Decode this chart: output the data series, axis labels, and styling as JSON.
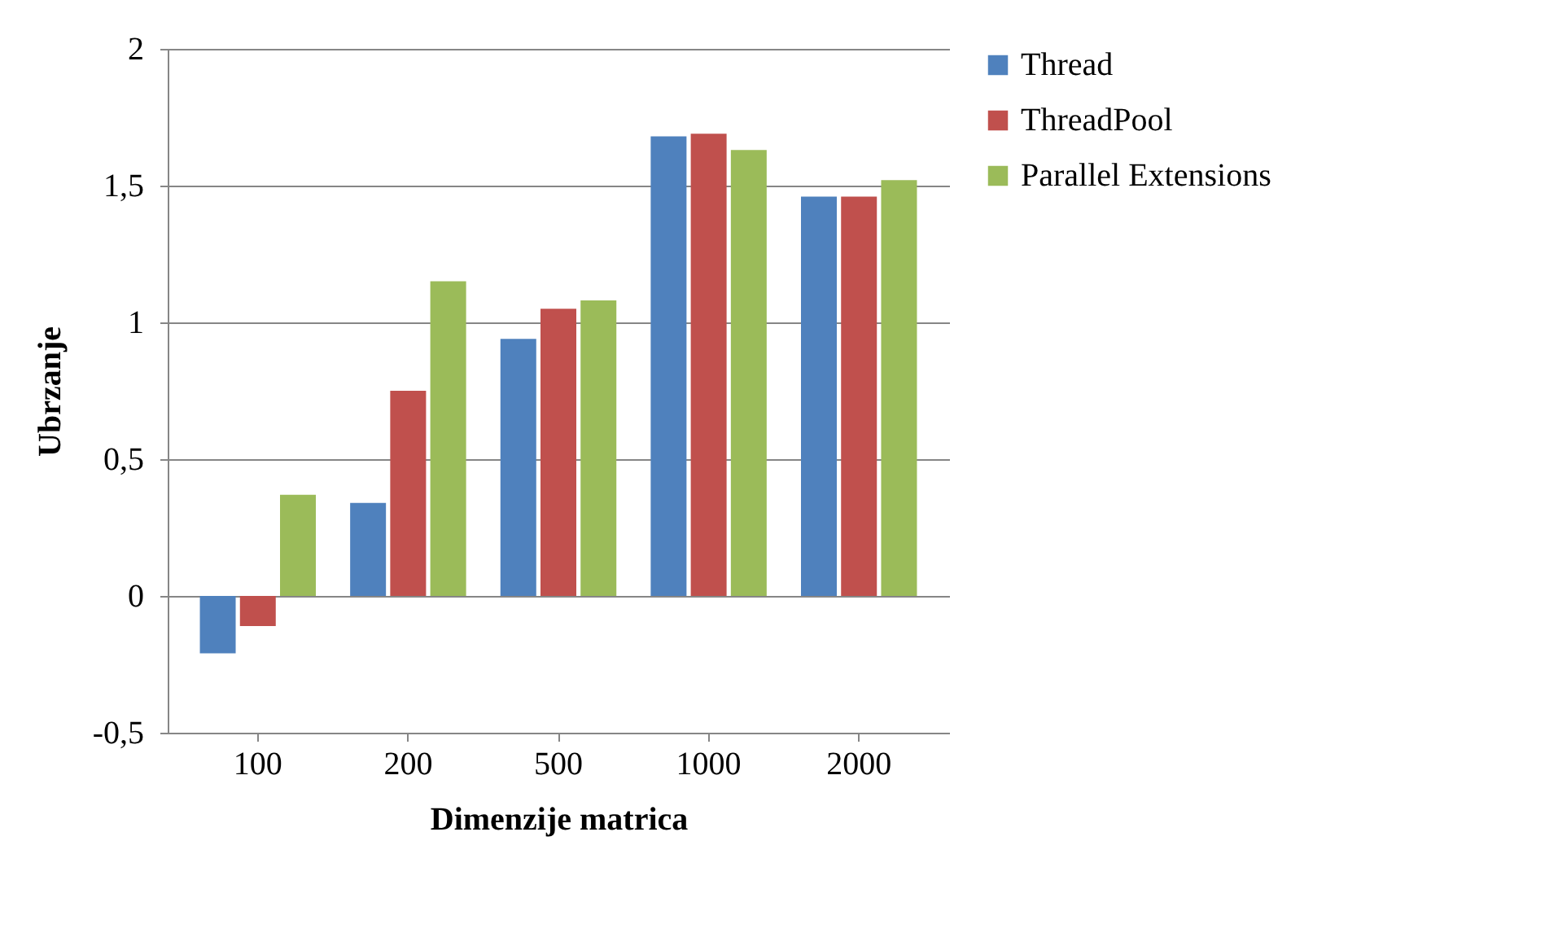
{
  "chart_data": {
    "type": "bar",
    "xlabel": "Dimenzije matrica",
    "ylabel": "Ubrzanje",
    "categories": [
      "100",
      "200",
      "500",
      "1000",
      "2000"
    ],
    "series": [
      {
        "name": "Thread",
        "color": "#4f81bd",
        "values": [
          -0.21,
          0.34,
          0.94,
          1.68,
          1.46
        ]
      },
      {
        "name": "ThreadPool",
        "color": "#c0504d",
        "values": [
          -0.11,
          0.75,
          1.05,
          1.69,
          1.46
        ]
      },
      {
        "name": "Parallel Extensions",
        "color": "#9bbb59",
        "values": [
          0.37,
          1.15,
          1.08,
          1.63,
          1.52
        ]
      }
    ],
    "ylim": [
      -0.5,
      2
    ],
    "yticks": [
      {
        "value": -0.5,
        "label": "-0,5"
      },
      0,
      {
        "value": 0.5,
        "label": "0,5"
      },
      1,
      {
        "value": 1.5,
        "label": "1,5"
      },
      2
    ],
    "grid": "y",
    "legend": "right"
  }
}
